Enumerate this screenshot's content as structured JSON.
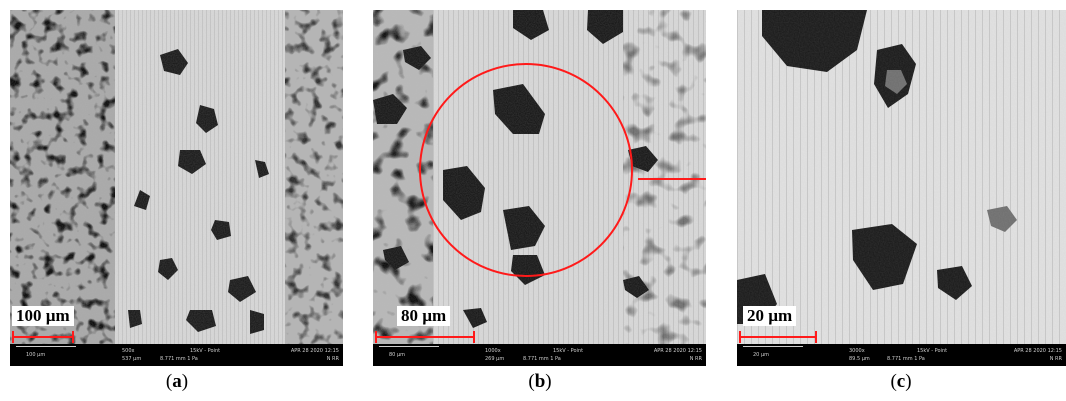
{
  "colors": {
    "annotation_red": "#ff1a1a",
    "infobar": "#000000",
    "background": "#ffffff"
  },
  "panels": [
    {
      "scale_label": "100 µm",
      "caption_letter": "a",
      "infobar": {
        "bar_text": "100 µm",
        "mag": "500x",
        "hfw": "537 µm",
        "kv": "15kV - Point",
        "det": "8.771 mm   1 Pa",
        "date": "APR 28 2020 12:15",
        "nrr": "N RR"
      }
    },
    {
      "scale_label": "80 µm",
      "caption_letter": "b",
      "infobar": {
        "bar_text": "80 µm",
        "mag": "1000x",
        "hfw": "269 µm",
        "kv": "15kV - Point",
        "det": "8.771 mm   1 Pa",
        "date": "APR 28 2020 12:15",
        "nrr": "N RR"
      }
    },
    {
      "scale_label": "20 µm",
      "caption_letter": "c",
      "infobar": {
        "bar_text": "20 µm",
        "mag": "3000x",
        "hfw": "89.5 µm",
        "kv": "15kV - Point",
        "det": "8.771 mm   1 Pa",
        "date": "APR 28 2020 12:15",
        "nrr": "N RR"
      }
    }
  ]
}
